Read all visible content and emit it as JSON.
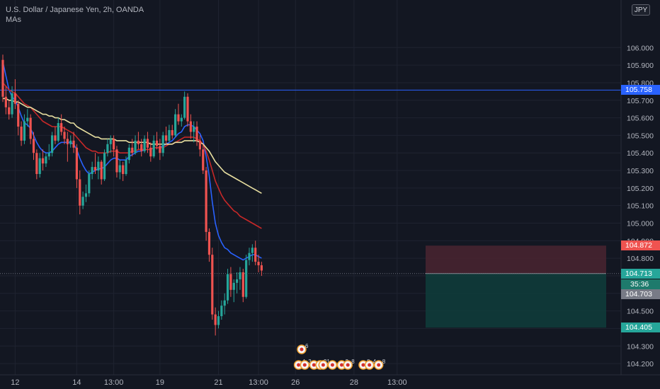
{
  "legend": {
    "symbol_line": "U.S. Dollar / Japanese Yen, 2h, OANDA",
    "indicator": "MAs"
  },
  "currency_badge": "JPY",
  "colors": {
    "background": "#131722",
    "grid": "#1f2330",
    "up": "#26a69a",
    "down": "#ef5350",
    "ma_fast": "#2962ff",
    "ma_mid": "#c62828",
    "ma_slow": "#e8dfa0",
    "hline": "#2962ff",
    "stop_zone": "#4a2430",
    "target_zone": "#0f3b3a",
    "axis_text": "#b2b5be"
  },
  "chart_data": {
    "type": "candlestick",
    "symbol": "USD/JPY",
    "interval": "2h",
    "ylim": [
      104.16,
      106.11
    ],
    "y_ticks": [
      "106.000",
      "105.900",
      "105.800",
      "105.700",
      "105.600",
      "105.500",
      "105.400",
      "105.300",
      "105.200",
      "105.100",
      "105.000",
      "104.900",
      "104.800",
      "104.700",
      "104.600",
      "104.500",
      "104.400",
      "104.300",
      "104.200"
    ],
    "x_tick_labels": [
      {
        "label": "12",
        "bar": 4
      },
      {
        "label": "14",
        "bar": 24
      },
      {
        "label": "13:00",
        "bar": 36
      },
      {
        "label": "19",
        "bar": 51
      },
      {
        "label": "21",
        "bar": 70
      },
      {
        "label": "13:00",
        "bar": 83
      },
      {
        "label": "26",
        "bar": 95
      },
      {
        "label": "28",
        "bar": 114
      },
      {
        "label": "13:00",
        "bar": 128
      }
    ],
    "candles_ohlc": [
      [
        105.93,
        105.96,
        105.69,
        105.72
      ],
      [
        105.72,
        105.78,
        105.62,
        105.66
      ],
      [
        105.66,
        105.7,
        105.59,
        105.62
      ],
      [
        105.62,
        105.78,
        105.6,
        105.74
      ],
      [
        105.74,
        105.82,
        105.65,
        105.68
      ],
      [
        105.68,
        105.7,
        105.5,
        105.55
      ],
      [
        105.55,
        105.58,
        105.44,
        105.47
      ],
      [
        105.47,
        105.62,
        105.45,
        105.58
      ],
      [
        105.58,
        105.65,
        105.55,
        105.6
      ],
      [
        105.6,
        105.62,
        105.45,
        105.48
      ],
      [
        105.48,
        105.52,
        105.36,
        105.4
      ],
      [
        105.4,
        105.42,
        105.25,
        105.28
      ],
      [
        105.28,
        105.4,
        105.26,
        105.37
      ],
      [
        105.37,
        105.42,
        105.3,
        105.34
      ],
      [
        105.34,
        105.4,
        105.32,
        105.38
      ],
      [
        105.38,
        105.45,
        105.36,
        105.4
      ],
      [
        105.4,
        105.52,
        105.38,
        105.5
      ],
      [
        105.5,
        105.55,
        105.45,
        105.47
      ],
      [
        105.47,
        105.6,
        105.46,
        105.57
      ],
      [
        105.57,
        105.62,
        105.5,
        105.52
      ],
      [
        105.52,
        105.55,
        105.45,
        105.48
      ],
      [
        105.48,
        105.52,
        105.35,
        105.45
      ],
      [
        105.45,
        105.5,
        105.43,
        105.47
      ],
      [
        105.47,
        105.52,
        105.4,
        105.43
      ],
      [
        105.43,
        105.45,
        105.2,
        105.25
      ],
      [
        105.25,
        105.3,
        105.05,
        105.1
      ],
      [
        105.1,
        105.18,
        105.08,
        105.15
      ],
      [
        105.15,
        105.22,
        105.12,
        105.17
      ],
      [
        105.17,
        105.3,
        105.15,
        105.28
      ],
      [
        105.28,
        105.35,
        105.25,
        105.32
      ],
      [
        105.32,
        105.4,
        105.28,
        105.3
      ],
      [
        105.3,
        105.38,
        105.25,
        105.35
      ],
      [
        105.35,
        105.36,
        105.22,
        105.25
      ],
      [
        105.25,
        105.42,
        105.24,
        105.4
      ],
      [
        105.4,
        105.48,
        105.38,
        105.45
      ],
      [
        105.45,
        105.5,
        105.4,
        105.48
      ],
      [
        105.48,
        105.5,
        105.38,
        105.42
      ],
      [
        105.42,
        105.44,
        105.26,
        105.29
      ],
      [
        105.29,
        105.36,
        105.25,
        105.33
      ],
      [
        105.33,
        105.35,
        105.24,
        105.28
      ],
      [
        105.28,
        105.38,
        105.27,
        105.36
      ],
      [
        105.36,
        105.45,
        105.34,
        105.43
      ],
      [
        105.43,
        105.48,
        105.38,
        105.4
      ],
      [
        105.4,
        105.5,
        105.39,
        105.47
      ],
      [
        105.47,
        105.52,
        105.42,
        105.45
      ],
      [
        105.45,
        105.48,
        105.38,
        105.41
      ],
      [
        105.41,
        105.5,
        105.4,
        105.48
      ],
      [
        105.48,
        105.52,
        105.4,
        105.43
      ],
      [
        105.43,
        105.46,
        105.35,
        105.38
      ],
      [
        105.38,
        105.5,
        105.37,
        105.47
      ],
      [
        105.47,
        105.52,
        105.42,
        105.44
      ],
      [
        105.44,
        105.48,
        105.36,
        105.4
      ],
      [
        105.4,
        105.52,
        105.38,
        105.5
      ],
      [
        105.5,
        105.55,
        105.45,
        105.47
      ],
      [
        105.47,
        105.56,
        105.46,
        105.53
      ],
      [
        105.53,
        105.56,
        105.48,
        105.5
      ],
      [
        105.5,
        105.65,
        105.49,
        105.62
      ],
      [
        105.62,
        105.68,
        105.56,
        105.58
      ],
      [
        105.58,
        105.62,
        105.55,
        105.6
      ],
      [
        105.6,
        105.75,
        105.59,
        105.72
      ],
      [
        105.72,
        105.74,
        105.55,
        105.58
      ],
      [
        105.58,
        105.62,
        105.48,
        105.52
      ],
      [
        105.52,
        105.58,
        105.46,
        105.55
      ],
      [
        105.55,
        105.58,
        105.44,
        105.47
      ],
      [
        105.47,
        105.5,
        105.38,
        105.42
      ],
      [
        105.42,
        105.45,
        105.28,
        105.3
      ],
      [
        105.3,
        105.32,
        104.9,
        104.95
      ],
      [
        104.95,
        104.97,
        104.78,
        104.82
      ],
      [
        104.82,
        104.86,
        104.45,
        104.48
      ],
      [
        104.48,
        104.52,
        104.36,
        104.42
      ],
      [
        104.42,
        104.5,
        104.4,
        104.47
      ],
      [
        104.47,
        104.56,
        104.45,
        104.53
      ],
      [
        104.53,
        104.6,
        104.48,
        104.56
      ],
      [
        104.56,
        104.74,
        104.54,
        104.71
      ],
      [
        104.71,
        104.75,
        104.58,
        104.62
      ],
      [
        104.62,
        104.68,
        104.55,
        104.66
      ],
      [
        104.66,
        104.72,
        104.6,
        104.68
      ],
      [
        104.68,
        104.75,
        104.62,
        104.72
      ],
      [
        104.72,
        104.74,
        104.55,
        104.58
      ],
      [
        104.58,
        104.82,
        104.57,
        104.79
      ],
      [
        104.79,
        104.86,
        104.76,
        104.83
      ],
      [
        104.83,
        104.88,
        104.78,
        104.86
      ],
      [
        104.86,
        104.9,
        104.76,
        104.78
      ],
      [
        104.78,
        104.82,
        104.72,
        104.76
      ],
      [
        104.76,
        104.78,
        104.7,
        104.73
      ]
    ],
    "moving_averages": [
      {
        "color": "#2962ff",
        "values": [
          105.92,
          105.84,
          105.76,
          105.72,
          105.7,
          105.66,
          105.61,
          105.57,
          105.56,
          105.54,
          105.5,
          105.46,
          105.43,
          105.41,
          105.4,
          105.4,
          105.41,
          105.43,
          105.45,
          105.46,
          105.46,
          105.46,
          105.46,
          105.45,
          105.42,
          105.37,
          105.33,
          105.3,
          105.28,
          105.29,
          105.3,
          105.31,
          105.31,
          105.32,
          105.34,
          105.36,
          105.37,
          105.37,
          105.36,
          105.36,
          105.36,
          105.38,
          105.39,
          105.4,
          105.41,
          105.41,
          105.42,
          105.42,
          105.42,
          105.43,
          105.43,
          105.43,
          105.44,
          105.45,
          105.46,
          105.47,
          105.49,
          105.51,
          105.52,
          105.55,
          105.56,
          105.56,
          105.55,
          105.53,
          105.51,
          105.47,
          105.38,
          105.27,
          105.12,
          105.0,
          104.93,
          104.89,
          104.86,
          104.85,
          104.83,
          104.82,
          104.81,
          104.8,
          104.79,
          104.8,
          104.81,
          104.82,
          104.82,
          104.81,
          104.8
        ]
      },
      {
        "color": "#c62828",
        "values": [
          105.8,
          105.78,
          105.76,
          105.75,
          105.74,
          105.72,
          105.7,
          105.68,
          105.67,
          105.66,
          105.64,
          105.62,
          105.6,
          105.58,
          105.57,
          105.56,
          105.55,
          105.55,
          105.55,
          105.55,
          105.54,
          105.53,
          105.52,
          105.51,
          105.49,
          105.47,
          105.45,
          105.43,
          105.42,
          105.41,
          105.41,
          105.4,
          105.4,
          105.4,
          105.4,
          105.41,
          105.41,
          105.41,
          105.4,
          105.4,
          105.4,
          105.4,
          105.41,
          105.41,
          105.42,
          105.42,
          105.42,
          105.42,
          105.42,
          105.43,
          105.43,
          105.43,
          105.43,
          105.44,
          105.45,
          105.45,
          105.46,
          105.47,
          105.48,
          105.49,
          105.49,
          105.49,
          105.49,
          105.48,
          105.47,
          105.45,
          105.41,
          105.36,
          105.3,
          105.24,
          105.2,
          105.16,
          105.13,
          105.11,
          105.09,
          105.07,
          105.06,
          105.04,
          105.03,
          105.02,
          105.01,
          105.0,
          104.99,
          104.98,
          104.97
        ]
      },
      {
        "color": "#e8dfa0",
        "values": [
          105.71,
          105.71,
          105.7,
          105.7,
          105.69,
          105.69,
          105.68,
          105.67,
          105.66,
          105.66,
          105.65,
          105.64,
          105.63,
          105.62,
          105.62,
          105.61,
          105.61,
          105.6,
          105.6,
          105.59,
          105.59,
          105.58,
          105.57,
          105.57,
          105.55,
          105.54,
          105.53,
          105.52,
          105.51,
          105.5,
          105.49,
          105.49,
          105.48,
          105.48,
          105.48,
          105.48,
          105.48,
          105.47,
          105.47,
          105.47,
          105.47,
          105.46,
          105.46,
          105.46,
          105.46,
          105.46,
          105.46,
          105.46,
          105.45,
          105.45,
          105.45,
          105.45,
          105.45,
          105.45,
          105.45,
          105.45,
          105.46,
          105.46,
          105.46,
          105.47,
          105.47,
          105.47,
          105.47,
          105.47,
          105.46,
          105.45,
          105.43,
          105.41,
          105.38,
          105.35,
          105.33,
          105.31,
          105.29,
          105.28,
          105.27,
          105.26,
          105.25,
          105.24,
          105.23,
          105.22,
          105.21,
          105.2,
          105.19,
          105.18,
          105.17
        ]
      }
    ],
    "horizontal_line": {
      "value": 105.758,
      "label": "105.758"
    },
    "position_tool": {
      "entry": 104.713,
      "stop": 104.872,
      "target": 104.405,
      "entry_label": "104.713",
      "stop_label": "104.872",
      "target_label": "104.405"
    },
    "last_price": {
      "value": 104.713,
      "label": "104.713",
      "countdown": "35:36"
    },
    "prev_close": {
      "value": 104.703,
      "label": "104.703"
    },
    "event_markers": [
      {
        "bar": 97,
        "row": 0,
        "text": "6"
      },
      {
        "bar": 96,
        "row": 1,
        "text": "4"
      },
      {
        "bar": 98,
        "row": 1,
        "text": "3"
      },
      {
        "bar": 101,
        "row": 1,
        "text": ""
      },
      {
        "bar": 103,
        "row": 1,
        "text": "3"
      },
      {
        "bar": 104,
        "row": 1,
        "text": "1"
      },
      {
        "bar": 107,
        "row": 1,
        "text": ""
      },
      {
        "bar": 110,
        "row": 1,
        "text": "2"
      },
      {
        "bar": 112,
        "row": 1,
        "text": "8"
      },
      {
        "bar": 117,
        "row": 1,
        "text": "8"
      },
      {
        "bar": 119,
        "row": 1,
        "text": "4"
      },
      {
        "bar": 122,
        "row": 1,
        "text": "8"
      }
    ]
  }
}
